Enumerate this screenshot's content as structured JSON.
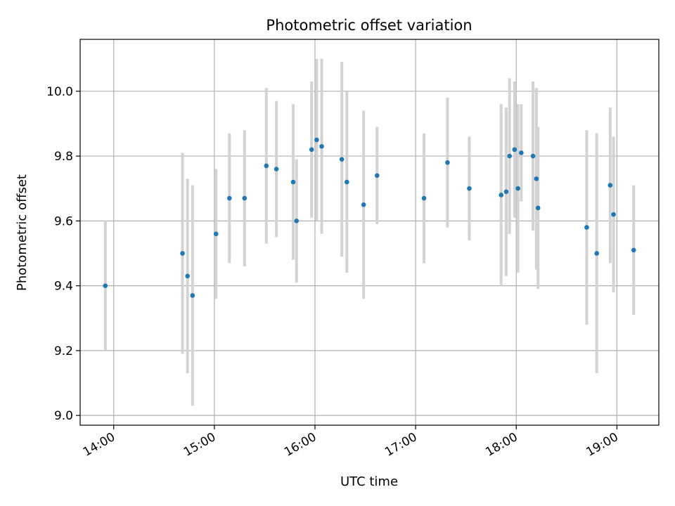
{
  "chart_data": {
    "type": "scatter",
    "title": "Photometric offset variation",
    "xlabel": "UTC time",
    "ylabel": "Photometric offset",
    "xlim": [
      "13:40",
      "19:25"
    ],
    "ylim": [
      8.97,
      10.16
    ],
    "x_ticks": [
      "14:00",
      "15:00",
      "16:00",
      "17:00",
      "18:00",
      "19:00"
    ],
    "y_ticks": [
      "9.0",
      "9.2",
      "9.4",
      "9.6",
      "9.8",
      "10.0"
    ],
    "grid": true,
    "colors": {
      "point": "#1f77b4",
      "errorbar": "#d3d3d3",
      "grid": "#b0b0b0"
    },
    "points": [
      {
        "x": "13:55",
        "y": 9.4,
        "err": 0.2
      },
      {
        "x": "14:41",
        "y": 9.5,
        "err": 0.31
      },
      {
        "x": "14:44",
        "y": 9.43,
        "err": 0.3
      },
      {
        "x": "14:47",
        "y": 9.37,
        "err": 0.34
      },
      {
        "x": "15:01",
        "y": 9.56,
        "err": 0.2
      },
      {
        "x": "15:09",
        "y": 9.67,
        "err": 0.2
      },
      {
        "x": "15:18",
        "y": 9.67,
        "err": 0.21
      },
      {
        "x": "15:31",
        "y": 9.77,
        "err": 0.24
      },
      {
        "x": "15:37",
        "y": 9.76,
        "err": 0.21
      },
      {
        "x": "15:47",
        "y": 9.72,
        "err": 0.24
      },
      {
        "x": "15:49",
        "y": 9.6,
        "err": 0.19
      },
      {
        "x": "15:58",
        "y": 9.82,
        "err": 0.21
      },
      {
        "x": "16:01",
        "y": 9.85,
        "err": 0.25
      },
      {
        "x": "16:04",
        "y": 9.83,
        "err": 0.27
      },
      {
        "x": "16:16",
        "y": 9.79,
        "err": 0.3
      },
      {
        "x": "16:19",
        "y": 9.72,
        "err": 0.28
      },
      {
        "x": "16:29",
        "y": 9.65,
        "err": 0.29
      },
      {
        "x": "16:37",
        "y": 9.74,
        "err": 0.15
      },
      {
        "x": "17:05",
        "y": 9.67,
        "err": 0.2
      },
      {
        "x": "17:19",
        "y": 9.78,
        "err": 0.2
      },
      {
        "x": "17:32",
        "y": 9.7,
        "err": 0.16
      },
      {
        "x": "17:51",
        "y": 9.68,
        "err": 0.28
      },
      {
        "x": "17:54",
        "y": 9.69,
        "err": 0.26
      },
      {
        "x": "17:56",
        "y": 9.8,
        "err": 0.24
      },
      {
        "x": "17:59",
        "y": 9.82,
        "err": 0.21
      },
      {
        "x": "18:01",
        "y": 9.7,
        "err": 0.26
      },
      {
        "x": "18:03",
        "y": 9.81,
        "err": 0.15
      },
      {
        "x": "18:10",
        "y": 9.8,
        "err": 0.23
      },
      {
        "x": "18:12",
        "y": 9.73,
        "err": 0.28
      },
      {
        "x": "18:13",
        "y": 9.64,
        "err": 0.25
      },
      {
        "x": "18:42",
        "y": 9.58,
        "err": 0.3
      },
      {
        "x": "18:48",
        "y": 9.5,
        "err": 0.37
      },
      {
        "x": "18:56",
        "y": 9.71,
        "err": 0.24
      },
      {
        "x": "18:58",
        "y": 9.62,
        "err": 0.24
      },
      {
        "x": "19:10",
        "y": 9.51,
        "err": 0.2
      }
    ]
  }
}
